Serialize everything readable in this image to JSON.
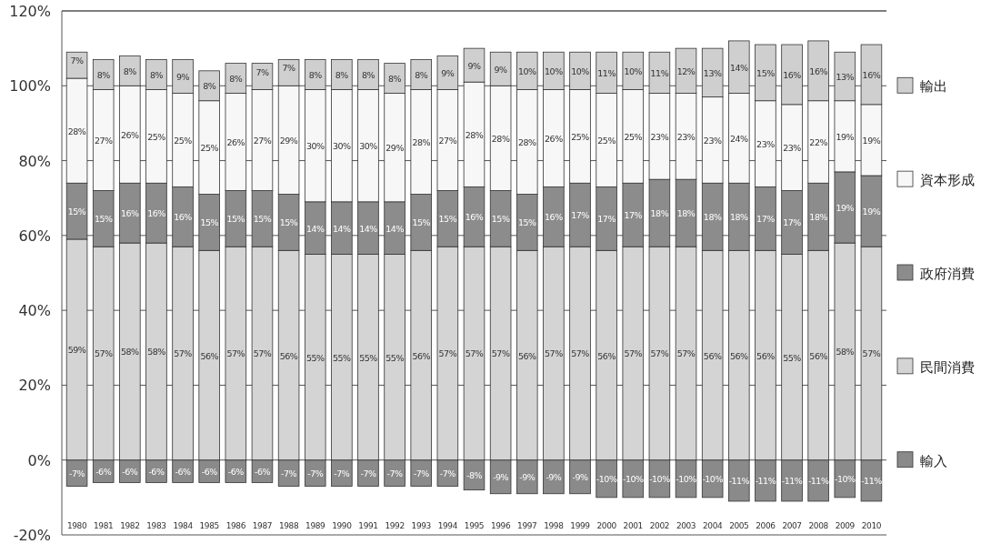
{
  "chart_data": {
    "type": "bar",
    "stacked": true,
    "grid": "y",
    "legend": "right",
    "categories": [
      "1980",
      "1981",
      "1982",
      "1983",
      "1984",
      "1985",
      "1986",
      "1987",
      "1988",
      "1989",
      "1990",
      "1991",
      "1992",
      "1993",
      "1994",
      "1995",
      "1996",
      "1997",
      "1998",
      "1999",
      "2000",
      "2001",
      "2002",
      "2003",
      "2004",
      "2005",
      "2006",
      "2007",
      "2008",
      "2009",
      "2010"
    ],
    "ylim": [
      -20,
      120
    ],
    "yticks": [
      {
        "value": -20,
        "label": "-20%"
      },
      {
        "value": 0,
        "label": "0%"
      },
      {
        "value": 20,
        "label": "20%"
      },
      {
        "value": 40,
        "label": "40%"
      },
      {
        "value": 60,
        "label": "60%"
      },
      {
        "value": 80,
        "label": "80%"
      },
      {
        "value": 100,
        "label": "100%"
      },
      {
        "value": 120,
        "label": "120%"
      }
    ],
    "series": [
      {
        "name": "輸入",
        "color": "#8a8a8a",
        "values": [
          -7,
          -6,
          -6,
          -6,
          -6,
          -6,
          -6,
          -6,
          -7,
          -7,
          -7,
          -7,
          -7,
          -7,
          -7,
          -8,
          -9,
          -9,
          -9,
          -9,
          -10,
          -10,
          -10,
          -10,
          -10,
          -11,
          -11,
          -11,
          -11,
          -10,
          -11
        ],
        "value_labels": [
          "-7%",
          "-6%",
          "-6%",
          "-6%",
          "-6%",
          "-6%",
          "-6%",
          "-6%",
          "-7%",
          "-7%",
          "-7%",
          "-7%",
          "-7%",
          "-7%",
          "-7%",
          "-8%",
          "-9%",
          "-9%",
          "-9%",
          "-9%",
          "-10%",
          "-10%",
          "-10%",
          "-10%",
          "-10%",
          "-11%",
          "-11%",
          "-11%",
          "-11%",
          "-10%",
          "-11%"
        ]
      },
      {
        "name": "民間消費",
        "color": "#d4d4d4",
        "values": [
          59,
          57,
          58,
          58,
          57,
          56,
          57,
          57,
          56,
          55,
          55,
          55,
          55,
          56,
          57,
          57,
          57,
          56,
          57,
          57,
          56,
          57,
          57,
          57,
          56,
          56,
          56,
          55,
          56,
          58,
          57
        ],
        "value_labels": [
          "59%",
          "57%",
          "58%",
          "58%",
          "57%",
          "56%",
          "57%",
          "57%",
          "56%",
          "55%",
          "55%",
          "55%",
          "55%",
          "56%",
          "57%",
          "57%",
          "57%",
          "56%",
          "57%",
          "57%",
          "56%",
          "57%",
          "57%",
          "57%",
          "56%",
          "56%",
          "56%",
          "55%",
          "56%",
          "58%",
          "57%"
        ]
      },
      {
        "name": "政府消費",
        "color": "#8c8c8c",
        "values": [
          15,
          15,
          16,
          16,
          16,
          15,
          15,
          15,
          15,
          14,
          14,
          14,
          14,
          15,
          15,
          16,
          15,
          15,
          16,
          17,
          17,
          17,
          18,
          18,
          18,
          18,
          17,
          17,
          18,
          19,
          19
        ],
        "value_labels": [
          "15%",
          "15%",
          "16%",
          "16%",
          "16%",
          "15%",
          "15%",
          "15%",
          "15%",
          "14%",
          "14%",
          "14%",
          "14%",
          "15%",
          "15%",
          "16%",
          "15%",
          "15%",
          "16%",
          "17%",
          "17%",
          "17%",
          "18%",
          "18%",
          "18%",
          "18%",
          "17%",
          "17%",
          "18%",
          "19%",
          "19%"
        ]
      },
      {
        "name": "資本形成",
        "color": "#f7f7f7",
        "values": [
          28,
          27,
          26,
          25,
          25,
          25,
          26,
          27,
          29,
          30,
          30,
          30,
          29,
          28,
          27,
          28,
          28,
          28,
          26,
          25,
          25,
          25,
          23,
          23,
          23,
          24,
          23,
          23,
          22,
          19,
          19
        ],
        "value_labels": [
          "28%",
          "27%",
          "26%",
          "25%",
          "25%",
          "25%",
          "26%",
          "27%",
          "29%",
          "30%",
          "30%",
          "30%",
          "29%",
          "28%",
          "27%",
          "28%",
          "28%",
          "28%",
          "26%",
          "25%",
          "25%",
          "25%",
          "23%",
          "23%",
          "23%",
          "24%",
          "23%",
          "23%",
          "22%",
          "19%",
          "19%"
        ]
      },
      {
        "name": "輸出",
        "color": "#cfcfcf",
        "values": [
          7,
          8,
          8,
          8,
          9,
          8,
          8,
          7,
          7,
          8,
          8,
          8,
          8,
          8,
          9,
          9,
          9,
          10,
          10,
          10,
          11,
          10,
          11,
          12,
          13,
          14,
          15,
          16,
          16,
          13,
          16
        ],
        "value_labels": [
          "7%",
          "8%",
          "8%",
          "8%",
          "9%",
          "8%",
          "8%",
          "7%",
          "7%",
          "8%",
          "8%",
          "8%",
          "8%",
          "8%",
          "9%",
          "9%",
          "9%",
          "10%",
          "10%",
          "10%",
          "11%",
          "10%",
          "11%",
          "12%",
          "13%",
          "14%",
          "15%",
          "16%",
          "16%",
          "13%",
          "16%"
        ]
      }
    ]
  }
}
